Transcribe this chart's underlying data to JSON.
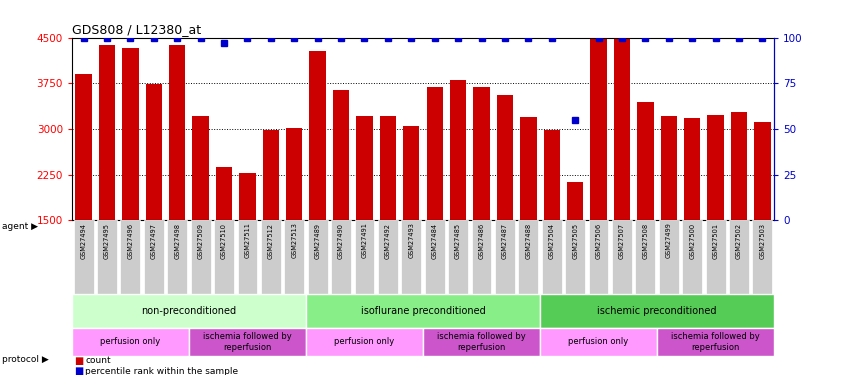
{
  "title": "GDS808 / L12380_at",
  "samples": [
    "GSM27494",
    "GSM27495",
    "GSM27496",
    "GSM27497",
    "GSM27498",
    "GSM27509",
    "GSM27510",
    "GSM27511",
    "GSM27512",
    "GSM27513",
    "GSM27489",
    "GSM27490",
    "GSM27491",
    "GSM27492",
    "GSM27493",
    "GSM27484",
    "GSM27485",
    "GSM27486",
    "GSM27487",
    "GSM27488",
    "GSM27504",
    "GSM27505",
    "GSM27506",
    "GSM27507",
    "GSM27508",
    "GSM27499",
    "GSM27500",
    "GSM27501",
    "GSM27502",
    "GSM27503"
  ],
  "counts": [
    3900,
    4380,
    4330,
    3740,
    4380,
    3210,
    2370,
    2270,
    2980,
    3010,
    4280,
    3640,
    3210,
    3210,
    3050,
    3690,
    3810,
    3680,
    3550,
    3190,
    2980,
    2130,
    4490,
    4500,
    3440,
    3210,
    3180,
    3230,
    3280,
    3120
  ],
  "percentiles": [
    100,
    100,
    100,
    100,
    100,
    100,
    97,
    100,
    100,
    100,
    100,
    100,
    100,
    100,
    100,
    100,
    100,
    100,
    100,
    100,
    100,
    55,
    100,
    100,
    100,
    100,
    100,
    100,
    100,
    100
  ],
  "bar_color": "#cc0000",
  "dot_color": "#0000cc",
  "ylim_left": [
    1500,
    4500
  ],
  "yticks_left": [
    1500,
    2250,
    3000,
    3750,
    4500
  ],
  "yticks_right": [
    0,
    25,
    50,
    75,
    100
  ],
  "grid_lines": [
    2250,
    3000,
    3750
  ],
  "agent_groups": [
    {
      "label": "non-preconditioned",
      "start": 0,
      "end": 10,
      "color": "#ccffcc"
    },
    {
      "label": "isoflurane preconditioned",
      "start": 10,
      "end": 20,
      "color": "#88ee88"
    },
    {
      "label": "ischemic preconditioned",
      "start": 20,
      "end": 30,
      "color": "#55cc55"
    }
  ],
  "protocol_groups": [
    {
      "label": "perfusion only",
      "start": 0,
      "end": 5,
      "color": "#ff99ff"
    },
    {
      "label": "ischemia followed by\nreperfusion",
      "start": 5,
      "end": 10,
      "color": "#cc55cc"
    },
    {
      "label": "perfusion only",
      "start": 10,
      "end": 15,
      "color": "#ff99ff"
    },
    {
      "label": "ischemia followed by\nreperfusion",
      "start": 15,
      "end": 20,
      "color": "#cc55cc"
    },
    {
      "label": "perfusion only",
      "start": 20,
      "end": 25,
      "color": "#ff99ff"
    },
    {
      "label": "ischemia followed by\nreperfusion",
      "start": 25,
      "end": 30,
      "color": "#cc55cc"
    }
  ],
  "legend_count_label": "count",
  "legend_pct_label": "percentile rank within the sample",
  "xtick_bg": "#cccccc",
  "agent_label": "agent",
  "protocol_label": "protocol"
}
